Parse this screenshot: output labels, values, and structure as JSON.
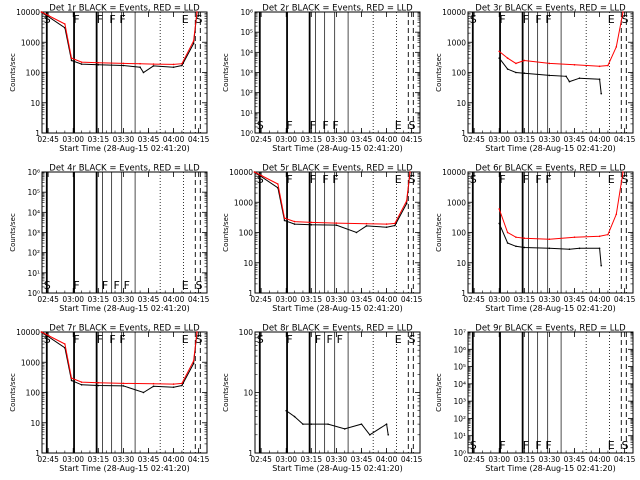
{
  "x_axis_title": "Start Time (28-Aug-15 02:41:20)",
  "x_ticks": [
    "02:45",
    "03:00",
    "03:15",
    "03:30",
    "03:45",
    "04:00",
    "04:15"
  ],
  "y_axis_title": "Counts/sec",
  "colors": {
    "events": "#000000",
    "lld": "#ff0000"
  },
  "marker_labels": {
    "short": [
      "S",
      "F",
      "F",
      "F",
      "F",
      "E",
      "S"
    ],
    "wide": [
      "S",
      "F",
      "F",
      "F",
      "E",
      "S"
    ]
  },
  "chart_data": [
    {
      "type": "line",
      "title": "Det 1r BLACK = Events, RED = LLD",
      "scale": "log",
      "ylim": [
        1,
        10000
      ],
      "y_ticks": [
        "1",
        "10",
        "100",
        "1000",
        "10000"
      ],
      "x_time_range": [
        "02:41:20",
        "04:20:00"
      ],
      "marker_lines_style": "S=solid, F=thin solid, E=dotted, end S=dashed",
      "series": [
        {
          "name": "Events",
          "x": [
            "02:41",
            "02:55",
            "02:59",
            "03:05",
            "03:15",
            "03:30",
            "03:40",
            "03:42",
            "03:48",
            "04:00",
            "04:05",
            "04:12",
            "04:14"
          ],
          "values": [
            10000,
            3000,
            250,
            190,
            180,
            170,
            150,
            100,
            165,
            150,
            170,
            900,
            10000
          ]
        },
        {
          "name": "LLD",
          "x": [
            "02:41",
            "02:55",
            "02:59",
            "03:05",
            "03:15",
            "03:30",
            "03:40",
            "03:48",
            "04:00",
            "04:05",
            "04:12",
            "04:14"
          ],
          "values": [
            10000,
            4000,
            300,
            220,
            210,
            200,
            195,
            190,
            185,
            195,
            1100,
            10000
          ]
        }
      ]
    },
    {
      "type": "line",
      "title": "Det 2r BLACK = Events, RED = LLD",
      "scale": "log",
      "ylim": [
        1,
        1000000
      ],
      "y_ticks": [
        "10⁰",
        "10¹",
        "10²",
        "10³",
        "10⁴",
        "10⁵",
        "10⁶"
      ],
      "series": []
    },
    {
      "type": "line",
      "title": "Det 3r BLACK = Events, RED = LLD",
      "scale": "log",
      "ylim": [
        1,
        10000
      ],
      "y_ticks": [
        "1",
        "10",
        "100",
        "1000",
        "10000"
      ],
      "series": [
        {
          "name": "Events",
          "x": [
            "03:00",
            "03:05",
            "03:10",
            "03:15",
            "03:30",
            "03:40",
            "03:42",
            "03:48",
            "04:00",
            "04:01"
          ],
          "values": [
            300,
            130,
            100,
            95,
            80,
            75,
            50,
            65,
            60,
            20
          ]
        },
        {
          "name": "LLD",
          "x": [
            "03:00",
            "03:05",
            "03:10",
            "03:15",
            "03:30",
            "03:45",
            "04:00",
            "04:05",
            "04:10",
            "04:14"
          ],
          "values": [
            500,
            300,
            200,
            250,
            200,
            180,
            160,
            170,
            700,
            10000
          ]
        }
      ]
    },
    {
      "type": "line",
      "title": "Det 4r BLACK = Events, RED = LLD",
      "scale": "log",
      "ylim": [
        1,
        1000000
      ],
      "y_ticks": [
        "10⁰",
        "10¹",
        "10²",
        "10³",
        "10⁴",
        "10⁵",
        "10⁶"
      ],
      "series": []
    },
    {
      "type": "line",
      "title": "Det 5r BLACK = Events, RED = LLD",
      "scale": "log",
      "ylim": [
        1,
        10000
      ],
      "y_ticks": [
        "1",
        "10",
        "100",
        "1000",
        "10000"
      ],
      "series": [
        {
          "name": "Events",
          "x": [
            "02:41",
            "02:55",
            "02:59",
            "03:05",
            "03:15",
            "03:30",
            "03:42",
            "03:48",
            "04:00",
            "04:05",
            "04:12",
            "04:14"
          ],
          "values": [
            10000,
            3000,
            250,
            190,
            180,
            175,
            100,
            165,
            150,
            170,
            900,
            10000
          ]
        },
        {
          "name": "LLD",
          "x": [
            "02:41",
            "02:55",
            "02:59",
            "03:05",
            "03:15",
            "03:30",
            "03:48",
            "04:00",
            "04:05",
            "04:12",
            "04:14"
          ],
          "values": [
            10000,
            4000,
            300,
            230,
            215,
            205,
            195,
            190,
            200,
            1100,
            10000
          ]
        }
      ]
    },
    {
      "type": "line",
      "title": "Det 6r BLACK = Events, RED = LLD",
      "scale": "log",
      "ylim": [
        1,
        10000
      ],
      "y_ticks": [
        "1",
        "10",
        "100",
        "1000",
        "10000"
      ],
      "series": [
        {
          "name": "Events",
          "x": [
            "03:00",
            "03:05",
            "03:10",
            "03:15",
            "03:30",
            "03:42",
            "03:48",
            "04:00",
            "04:01"
          ],
          "values": [
            200,
            45,
            35,
            32,
            30,
            28,
            30,
            30,
            8
          ]
        },
        {
          "name": "LLD",
          "x": [
            "03:00",
            "03:05",
            "03:10",
            "03:15",
            "03:30",
            "03:45",
            "04:00",
            "04:05",
            "04:10",
            "04:14"
          ],
          "values": [
            600,
            100,
            70,
            65,
            60,
            70,
            75,
            85,
            400,
            10000
          ]
        }
      ]
    },
    {
      "type": "line",
      "title": "Det 7r BLACK = Events, RED = LLD",
      "scale": "log",
      "ylim": [
        1,
        10000
      ],
      "y_ticks": [
        "1",
        "10",
        "100",
        "1000",
        "10000"
      ],
      "series": [
        {
          "name": "Events",
          "x": [
            "02:41",
            "02:55",
            "02:59",
            "03:05",
            "03:15",
            "03:30",
            "03:42",
            "03:48",
            "04:00",
            "04:05",
            "04:12",
            "04:14"
          ],
          "values": [
            10000,
            3000,
            250,
            180,
            170,
            165,
            100,
            160,
            150,
            170,
            900,
            10000
          ]
        },
        {
          "name": "LLD",
          "x": [
            "02:41",
            "02:55",
            "02:59",
            "03:05",
            "03:15",
            "03:30",
            "03:48",
            "04:00",
            "04:05",
            "04:12",
            "04:14"
          ],
          "values": [
            10000,
            4000,
            300,
            220,
            210,
            200,
            195,
            190,
            200,
            1100,
            10000
          ]
        }
      ]
    },
    {
      "type": "line",
      "title": "Det 8r BLACK = Events, RED = LLD",
      "scale": "log",
      "ylim": [
        1,
        100
      ],
      "y_ticks": [
        "1",
        "10",
        "100"
      ],
      "series": [
        {
          "name": "Events",
          "x": [
            "03:00",
            "03:05",
            "03:10",
            "03:15",
            "03:25",
            "03:35",
            "03:45",
            "03:50",
            "04:00",
            "04:01"
          ],
          "values": [
            5,
            4,
            3,
            3,
            3,
            2.5,
            3,
            2,
            3,
            2
          ]
        }
      ]
    },
    {
      "type": "line",
      "title": "Det 9r BLACK = Events, RED = LLD",
      "scale": "log",
      "ylim": [
        1,
        10000000
      ],
      "y_ticks": [
        "10⁰",
        "10¹",
        "10²",
        "10³",
        "10⁴",
        "10⁵",
        "10⁶",
        "10⁷"
      ],
      "series": []
    }
  ]
}
